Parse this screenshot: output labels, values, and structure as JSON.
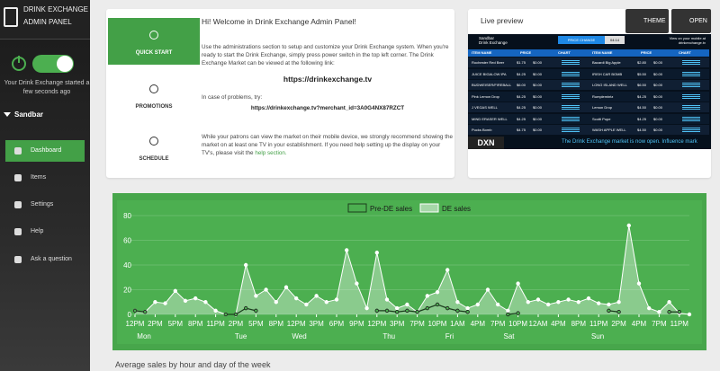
{
  "sidebar": {
    "brand": [
      "DRINK EXCHANGE",
      "ADMIN PANEL"
    ],
    "status": "Your Drink Exchange started a few seconds ago",
    "venue": "Sandbar",
    "nav": [
      "Dashboard",
      "Items",
      "Settings",
      "Help",
      "Ask a question"
    ]
  },
  "welcome": {
    "tabs": [
      "QUICK START",
      "PROMOTIONS",
      "SCHEDULE"
    ],
    "heading": "Hi! Welcome in Drink Exchange Admin Panel!",
    "p1": "Use the administrations section to setup and customize your Drink Exchange system. When you're ready to start the Drink Exchange, simply press power switch in the top left corner. The Drink Exchange Market can be viewed at the following link:",
    "url": "https://drinkexchange.tv",
    "p2": "In case of problems, try:",
    "url2": "https://drinkexchange.tv?merchant_id=3A0G4NX87RZCT",
    "p3": "While your patrons can view the market on their mobile device, we strongly recommend showing the market on at least one TV in your establishment. If you need help setting up the display on your TV's, please visit the",
    "p3_link": "help section."
  },
  "preview": {
    "title": "Live preview",
    "buttons": [
      "THEME",
      "OPEN"
    ],
    "board": {
      "venue": [
        "Sandbar",
        "Drink Exchange"
      ],
      "price_change": "PRICE CHANGE",
      "timer": "04:14",
      "mobile": [
        "View on your mobile at",
        "drinkexchange.tv"
      ],
      "headers": [
        "ITEM NAME",
        "PRICE",
        "CHART"
      ],
      "left": [
        [
          "Rochester Red Beer",
          "$1.75",
          "$0.00"
        ],
        [
          "JUICE BIGALOW IPA",
          "$4.25",
          "$0.00"
        ],
        [
          "BUDWEISER/FIREBALL",
          "$6.00",
          "$0.00"
        ],
        [
          "Pink Lemon Drop",
          "$4.25",
          "$0.00"
        ],
        [
          "J VEGAS WELL",
          "$4.25",
          "$0.00"
        ],
        [
          "MIND ERASER WELL",
          "$4.25",
          "$0.00"
        ],
        [
          "Pucks Bomb",
          "$4.75",
          "$0.00"
        ]
      ],
      "right": [
        [
          "Bacardi Big Apple",
          "$2.80",
          "$0.00"
        ],
        [
          "IRISH CAR BOMB",
          "$5.50",
          "$0.00"
        ],
        [
          "LONG ISLAND WELL",
          "$6.50",
          "$0.00"
        ],
        [
          "Rumplemintz",
          "$4.25",
          "$0.00"
        ],
        [
          "Lemon Drop",
          "$4.50",
          "$0.00"
        ],
        [
          "Scotti Pope",
          "$4.25",
          "$0.00"
        ],
        [
          "WASH APPLE WELL",
          "$4.50",
          "$0.00"
        ]
      ],
      "logo": "DXN",
      "ticker": "The Drink Exchange market is now open. Influence mark"
    }
  },
  "chart_data": {
    "type": "line",
    "x": [
      0,
      1,
      2,
      3,
      4,
      5,
      6,
      7,
      8,
      9,
      10,
      11,
      12,
      13,
      14,
      15,
      16,
      17,
      18,
      19,
      20,
      21,
      22,
      23,
      24,
      25,
      26,
      27,
      28,
      29,
      30,
      31,
      32,
      33,
      34,
      35,
      36,
      37,
      38,
      39,
      40,
      41,
      42,
      43,
      44,
      45,
      46,
      47,
      48,
      49,
      50,
      51,
      52,
      53,
      54,
      55
    ],
    "series": [
      {
        "name": "Pre-DE sales",
        "color": "#1b3d1d",
        "values": [
          3,
          2,
          null,
          null,
          null,
          null,
          null,
          null,
          null,
          0,
          0,
          5,
          3,
          null,
          null,
          null,
          null,
          null,
          null,
          null,
          null,
          null,
          null,
          null,
          3,
          3,
          2,
          3,
          2,
          5,
          8,
          5,
          3,
          2,
          null,
          null,
          null,
          0,
          1,
          null,
          null,
          null,
          null,
          null,
          null,
          null,
          null,
          3,
          2,
          null,
          null,
          null,
          null,
          2,
          2,
          null
        ]
      },
      {
        "name": "DE sales",
        "color": "#ffffff",
        "values": [
          3,
          2,
          10,
          9,
          19,
          11,
          13,
          10,
          3,
          0,
          0,
          40,
          15,
          20,
          10,
          22,
          13,
          8,
          15,
          10,
          12,
          52,
          25,
          5,
          50,
          12,
          5,
          8,
          2,
          15,
          18,
          36,
          10,
          5,
          8,
          20,
          8,
          3,
          25,
          10,
          12,
          8,
          10,
          12,
          10,
          13,
          9,
          8,
          10,
          72,
          25,
          5,
          2,
          10,
          1,
          0
        ]
      }
    ],
    "xlim": [
      0,
      55
    ],
    "xticks": [
      {
        "value": 0,
        "label": "12PM"
      },
      {
        "value": 2,
        "label": "2PM"
      },
      {
        "value": 4,
        "label": "5PM"
      },
      {
        "value": 6,
        "label": "8PM"
      },
      {
        "value": 8,
        "label": "11PM"
      },
      {
        "value": 10,
        "label": "2PM"
      },
      {
        "value": 12,
        "label": "5PM"
      },
      {
        "value": 14,
        "label": "8PM"
      },
      {
        "value": 16,
        "label": "12PM"
      },
      {
        "value": 18,
        "label": "3PM"
      },
      {
        "value": 20,
        "label": "6PM"
      },
      {
        "value": 22,
        "label": "9PM"
      },
      {
        "value": 24,
        "label": "12PM"
      },
      {
        "value": 26,
        "label": "3PM"
      },
      {
        "value": 28,
        "label": "7PM"
      },
      {
        "value": 30,
        "label": "10PM"
      },
      {
        "value": 32,
        "label": "1AM"
      },
      {
        "value": 34,
        "label": "4PM"
      },
      {
        "value": 36,
        "label": "7PM"
      },
      {
        "value": 38,
        "label": "10PM"
      },
      {
        "value": 40,
        "label": "12AM"
      },
      {
        "value": 42,
        "label": "4PM"
      },
      {
        "value": 44,
        "label": "8PM"
      },
      {
        "value": 46,
        "label": "11PM"
      },
      {
        "value": 48,
        "label": "2PM"
      },
      {
        "value": 50,
        "label": "4PM"
      },
      {
        "value": 52,
        "label": "7PM"
      },
      {
        "value": 54,
        "label": "11PM"
      }
    ],
    "days": [
      {
        "value": 0.9,
        "label": "Mon"
      },
      {
        "value": 10.5,
        "label": "Tue"
      },
      {
        "value": 16.3,
        "label": "Wed"
      },
      {
        "value": 25.2,
        "label": "Thu"
      },
      {
        "value": 31.2,
        "label": "Fri"
      },
      {
        "value": 37.1,
        "label": "Sat"
      },
      {
        "value": 45.9,
        "label": "Sun"
      }
    ],
    "ylim": [
      0,
      80
    ],
    "yticks": [
      0,
      20,
      40,
      60,
      80
    ],
    "grid": true
  },
  "caption": "Average sales by hour and day of the week"
}
